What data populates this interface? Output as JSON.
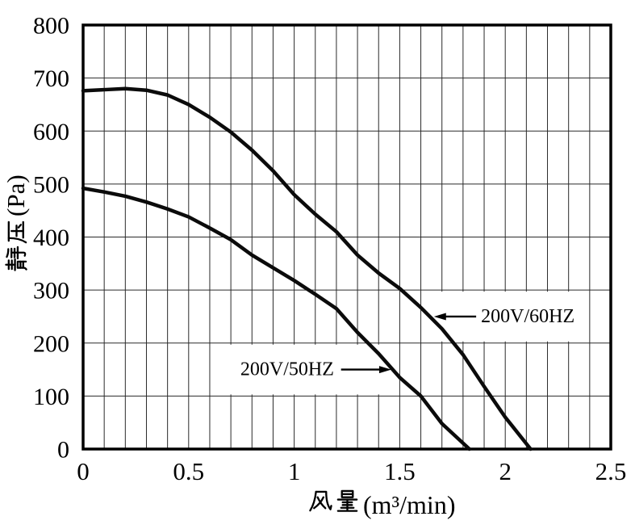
{
  "colors": {
    "background": "#ffffff",
    "border": "#000000",
    "grid": "#2a2a2a",
    "curve": "#0b0b0b",
    "text": "#000000"
  },
  "chart_data": {
    "type": "line",
    "title": "",
    "xlabel": "风量(m³/min)",
    "xlabel_cjk": "风量",
    "xlabel_unit": "(m³/min)",
    "ylabel": "静压(Pa)",
    "ylabel_cjk": "静压",
    "ylabel_unit": "(Pa)",
    "xlim": [
      0,
      2.5
    ],
    "ylim": [
      0,
      800
    ],
    "grid": {
      "x_minor_step": 0.1,
      "y_step": 100,
      "style": "full-grid"
    },
    "legend_position": "none",
    "x_ticks": [
      {
        "value": 0,
        "label": "0"
      },
      {
        "value": 0.5,
        "label": "0.5"
      },
      {
        "value": 1,
        "label": "1"
      },
      {
        "value": 1.5,
        "label": "1.5"
      },
      {
        "value": 2,
        "label": "2"
      },
      {
        "value": 2.5,
        "label": "2.5"
      }
    ],
    "y_ticks": [
      {
        "value": 0,
        "label": "0"
      },
      {
        "value": 100,
        "label": "100"
      },
      {
        "value": 200,
        "label": "200"
      },
      {
        "value": 300,
        "label": "300"
      },
      {
        "value": 400,
        "label": "400"
      },
      {
        "value": 500,
        "label": "500"
      },
      {
        "value": 600,
        "label": "600"
      },
      {
        "value": 700,
        "label": "700"
      },
      {
        "value": 800,
        "label": "800"
      }
    ],
    "series": [
      {
        "name": "200V/60HZ",
        "points": [
          [
            0,
            676
          ],
          [
            0.1,
            678
          ],
          [
            0.2,
            680
          ],
          [
            0.3,
            677
          ],
          [
            0.4,
            668
          ],
          [
            0.5,
            650
          ],
          [
            0.6,
            626
          ],
          [
            0.7,
            598
          ],
          [
            0.8,
            564
          ],
          [
            0.9,
            525
          ],
          [
            1.0,
            480
          ],
          [
            1.1,
            443
          ],
          [
            1.2,
            410
          ],
          [
            1.3,
            366
          ],
          [
            1.4,
            332
          ],
          [
            1.5,
            303
          ],
          [
            1.6,
            267
          ],
          [
            1.7,
            227
          ],
          [
            1.8,
            178
          ],
          [
            1.9,
            118
          ],
          [
            2.0,
            60
          ],
          [
            2.12,
            0
          ]
        ]
      },
      {
        "name": "200V/50HZ",
        "points": [
          [
            0,
            492
          ],
          [
            0.1,
            485
          ],
          [
            0.2,
            477
          ],
          [
            0.3,
            466
          ],
          [
            0.4,
            453
          ],
          [
            0.5,
            438
          ],
          [
            0.6,
            417
          ],
          [
            0.7,
            395
          ],
          [
            0.8,
            366
          ],
          [
            0.9,
            342
          ],
          [
            1.0,
            318
          ],
          [
            1.1,
            292
          ],
          [
            1.2,
            265
          ],
          [
            1.3,
            220
          ],
          [
            1.4,
            180
          ],
          [
            1.5,
            135
          ],
          [
            1.6,
            100
          ],
          [
            1.7,
            48
          ],
          [
            1.83,
            0
          ]
        ]
      }
    ],
    "annotations": [
      {
        "label": "200V/50HZ",
        "series": "200V/50HZ",
        "arrow_tip": [
          1.46,
          150
        ],
        "label_pos": [
          0.745,
          150
        ],
        "label_side": "left"
      },
      {
        "label": "200V/60HZ",
        "series": "200V/60HZ",
        "arrow_tip": [
          1.662,
          250
        ],
        "label_pos": [
          1.885,
          250
        ],
        "label_side": "right"
      }
    ]
  }
}
